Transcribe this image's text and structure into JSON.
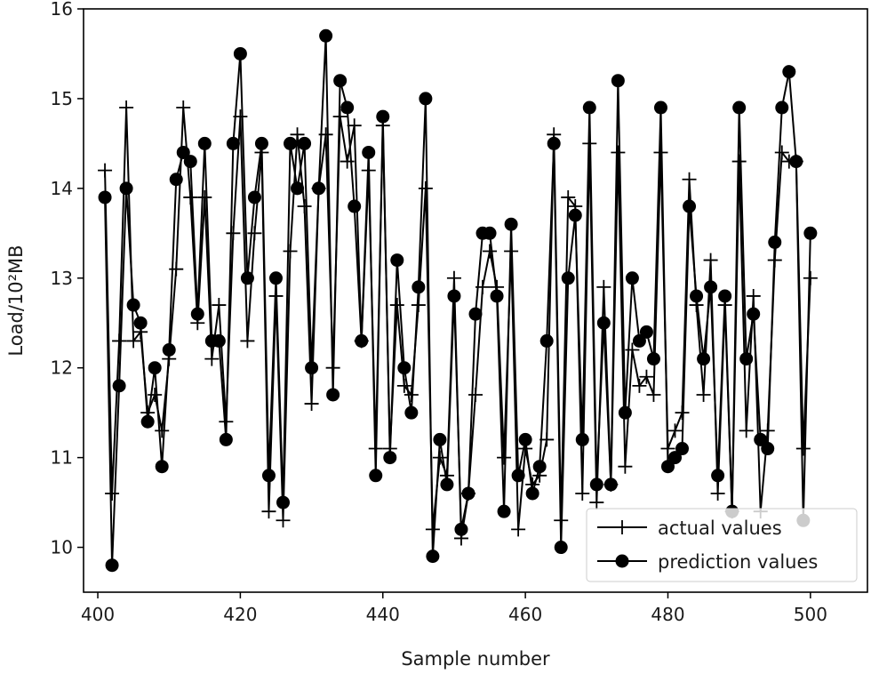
{
  "chart_data": {
    "type": "line",
    "xlabel": "Sample number",
    "ylabel": "Load/10²MB",
    "xlim": [
      398,
      508
    ],
    "ylim": [
      9.5,
      16
    ],
    "xticks": [
      400,
      420,
      440,
      460,
      480,
      500
    ],
    "yticks": [
      10,
      11,
      12,
      13,
      14,
      15,
      16
    ],
    "grid": false,
    "legend_position": "bottom-right",
    "x": [
      401,
      402,
      403,
      404,
      405,
      406,
      407,
      408,
      409,
      410,
      411,
      412,
      413,
      414,
      415,
      416,
      417,
      418,
      419,
      420,
      421,
      422,
      423,
      424,
      425,
      426,
      427,
      428,
      429,
      430,
      431,
      432,
      433,
      434,
      435,
      436,
      437,
      438,
      439,
      440,
      441,
      442,
      443,
      444,
      445,
      446,
      447,
      448,
      449,
      450,
      451,
      452,
      453,
      454,
      455,
      456,
      457,
      458,
      459,
      460,
      461,
      462,
      463,
      464,
      465,
      466,
      467,
      468,
      469,
      470,
      471,
      472,
      473,
      474,
      475,
      476,
      477,
      478,
      479,
      480,
      481,
      482,
      483,
      484,
      485,
      486,
      487,
      488,
      489,
      490,
      491,
      492,
      493,
      494,
      495,
      496,
      497,
      498,
      499,
      500
    ],
    "series": [
      {
        "name": "actual values",
        "marker": "plus",
        "color": "#000000",
        "values": [
          14.2,
          10.6,
          12.3,
          14.9,
          12.3,
          12.4,
          11.5,
          11.7,
          11.3,
          12.1,
          13.1,
          14.9,
          13.9,
          12.5,
          13.9,
          12.1,
          12.7,
          11.4,
          13.5,
          14.8,
          12.3,
          13.5,
          14.4,
          10.4,
          12.8,
          10.3,
          13.3,
          14.6,
          13.8,
          11.6,
          14.0,
          14.6,
          12.0,
          14.8,
          14.3,
          14.7,
          12.3,
          14.2,
          11.1,
          14.7,
          11.1,
          12.7,
          11.8,
          11.7,
          12.7,
          14.0,
          10.2,
          11.0,
          10.8,
          13.0,
          10.1,
          10.6,
          11.7,
          12.9,
          13.3,
          12.9,
          11.0,
          13.3,
          10.2,
          11.1,
          10.7,
          10.8,
          11.2,
          14.6,
          10.3,
          13.9,
          13.8,
          10.6,
          14.5,
          10.5,
          12.9,
          10.7,
          14.4,
          10.9,
          12.2,
          11.8,
          11.9,
          11.7,
          14.4,
          11.1,
          11.3,
          11.5,
          14.1,
          12.7,
          11.7,
          13.2,
          10.6,
          12.7,
          10.4,
          14.3,
          11.3,
          12.8,
          10.4,
          11.3,
          13.2,
          14.4,
          14.3,
          14.3,
          11.1,
          13.0
        ]
      },
      {
        "name": "prediction values",
        "marker": "circle",
        "color": "#000000",
        "values": [
          13.9,
          9.8,
          11.8,
          14.0,
          12.7,
          12.5,
          11.4,
          12.0,
          10.9,
          12.2,
          14.1,
          14.4,
          14.3,
          12.6,
          14.5,
          12.3,
          12.3,
          11.2,
          14.5,
          15.5,
          13.0,
          13.9,
          14.5,
          10.8,
          13.0,
          10.5,
          14.5,
          14.0,
          14.5,
          12.0,
          14.0,
          15.7,
          11.7,
          15.2,
          14.9,
          13.8,
          12.3,
          14.4,
          10.8,
          14.8,
          11.0,
          13.2,
          12.0,
          11.5,
          12.9,
          15.0,
          9.9,
          11.2,
          10.7,
          12.8,
          10.2,
          10.6,
          12.6,
          13.5,
          13.5,
          12.8,
          10.4,
          13.6,
          10.8,
          11.2,
          10.6,
          10.9,
          12.3,
          14.5,
          10.0,
          13.0,
          13.7,
          11.2,
          14.9,
          10.7,
          12.5,
          10.7,
          15.2,
          11.5,
          13.0,
          12.3,
          12.4,
          12.1,
          14.9,
          10.9,
          11.0,
          11.1,
          13.8,
          12.8,
          12.1,
          12.9,
          10.8,
          12.8,
          10.4,
          14.9,
          12.1,
          12.6,
          11.2,
          11.1,
          13.4,
          14.9,
          15.3,
          14.3,
          10.3,
          13.5
        ]
      }
    ]
  }
}
